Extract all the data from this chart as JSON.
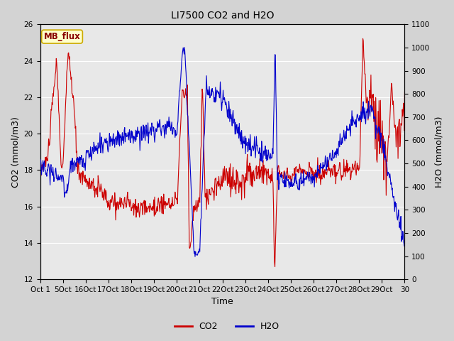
{
  "title": "LI7500 CO2 and H2O",
  "xlabel": "Time",
  "ylabel_left": "CO2 (mmol/m3)",
  "ylabel_right": "H2O (mmol/m3)",
  "ylim_left": [
    12,
    26
  ],
  "ylim_right": [
    0,
    1100
  ],
  "yticks_left": [
    12,
    14,
    16,
    18,
    20,
    22,
    24,
    26
  ],
  "yticks_right": [
    0,
    100,
    200,
    300,
    400,
    500,
    600,
    700,
    800,
    900,
    1000,
    1100
  ],
  "xtick_labels": [
    "Oct 1",
    "5Oct",
    "16Oct",
    "17Oct",
    "18Oct",
    "19Oct",
    "20Oct",
    "21Oct",
    "22Oct",
    "23Oct",
    "24Oct",
    "25Oct",
    "26Oct",
    "27Oct",
    "28Oct",
    "29Oct",
    "30"
  ],
  "co2_color": "#cc0000",
  "h2o_color": "#0000cc",
  "fig_bg_color": "#d3d3d3",
  "plot_bg_color": "#e8e8e8",
  "grid_color": "#ffffff",
  "annotation_text": "MB_flux",
  "annotation_bg": "#ffffcc",
  "annotation_border": "#ccaa00",
  "annotation_text_color": "#880000",
  "legend_co2": "CO2",
  "legend_h2o": "H2O",
  "title_fontsize": 10,
  "axis_fontsize": 9,
  "tick_fontsize": 7.5,
  "linewidth": 0.8
}
